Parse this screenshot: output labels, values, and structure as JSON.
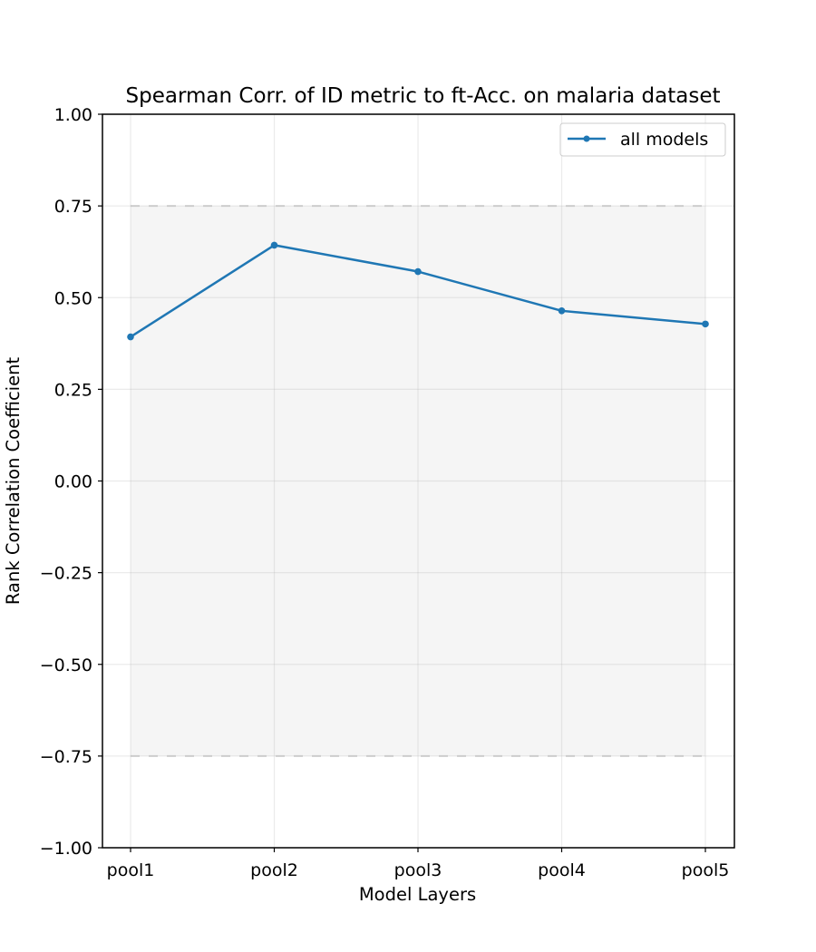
{
  "chart_data": {
    "type": "line",
    "title": "Spearman Corr. of ID metric to ft-Acc. on malaria dataset",
    "xlabel": "Model Layers",
    "ylabel": "Rank Correlation Coefficient",
    "categories": [
      "pool1",
      "pool2",
      "pool3",
      "pool4",
      "pool5"
    ],
    "ylim": [
      -1.0,
      1.0
    ],
    "yticks": [
      1.0,
      0.75,
      0.5,
      0.25,
      0.0,
      -0.25,
      -0.5,
      -0.75,
      -1.0
    ],
    "ytick_labels": [
      "1.00",
      "0.75",
      "0.50",
      "0.25",
      "0.00",
      "−0.25",
      "−0.50",
      "−0.75",
      "−1.00"
    ],
    "band": {
      "lower": -0.75,
      "upper": 0.75,
      "fill": "#f5f5f5",
      "line_color": "#d3d3d3",
      "line_style": "dashed"
    },
    "grid": true,
    "legend_position": "top-right",
    "series": [
      {
        "name": "all models",
        "color": "#1f77b4",
        "values": [
          0.393,
          0.643,
          0.571,
          0.464,
          0.428
        ]
      }
    ]
  }
}
